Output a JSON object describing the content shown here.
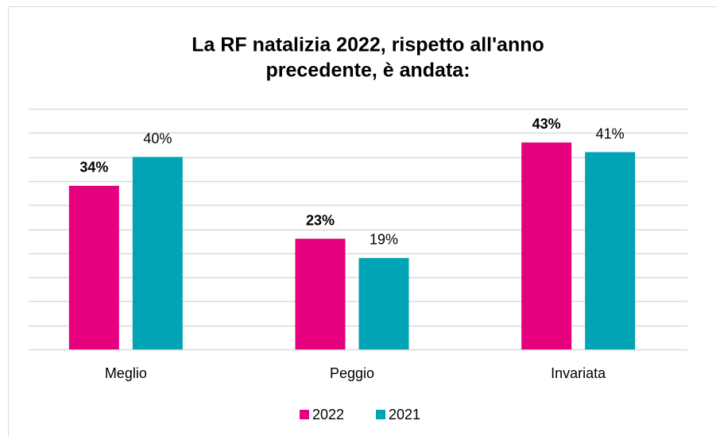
{
  "chart_data": {
    "type": "bar",
    "title": [
      "La RF natalizia 2022, rispetto all'anno",
      "precedente, è andata:"
    ],
    "categories": [
      "Meglio",
      "Peggio",
      "Invariata"
    ],
    "series": [
      {
        "name": "2022",
        "color": "#e5007e",
        "values": [
          34,
          23,
          43
        ],
        "value_labels": [
          "34%",
          "23%",
          "43%"
        ],
        "bold_labels": true
      },
      {
        "name": "2021",
        "color": "#00a4b5",
        "values": [
          40,
          19,
          41
        ],
        "value_labels": [
          "40%",
          "19%",
          "41%"
        ],
        "bold_labels": false
      }
    ],
    "ylim": [
      0,
      50
    ],
    "yticks": [
      0,
      5,
      10,
      15,
      20,
      25,
      30,
      35,
      40,
      45,
      50
    ],
    "grid": true,
    "legend": "bottom"
  }
}
